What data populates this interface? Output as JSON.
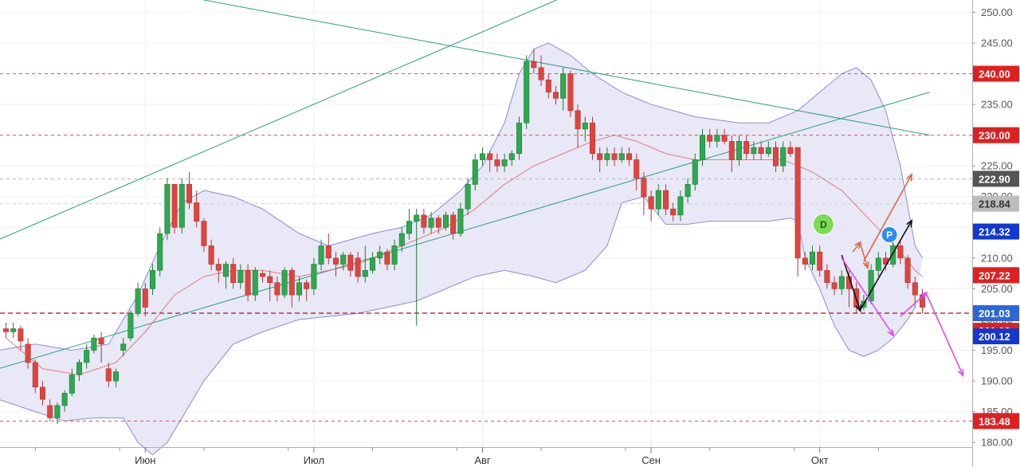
{
  "chart_data": {
    "type": "candlestick",
    "title": "",
    "xlabel": "",
    "ylabel": "",
    "ylim": [
      176,
      252
    ],
    "y_ticks": [
      "180.00",
      "185.00",
      "190.00",
      "195.00",
      "200.00",
      "205.00",
      "210.00",
      "215.00",
      "220.00",
      "225.00",
      "230.00",
      "235.00",
      "240.00",
      "245.00",
      "250.00"
    ],
    "x_ticks": [
      {
        "label": "Июн",
        "index": 19
      },
      {
        "label": "Июл",
        "index": 42
      },
      {
        "label": "Авг",
        "index": 65
      },
      {
        "label": "Сен",
        "index": 88
      },
      {
        "label": "Окт",
        "index": 111
      }
    ],
    "colors": {
      "up": "#2fa84f",
      "down": "#e0443e",
      "band_fill": "#e4e4f4",
      "band_line": "#8b8bd6",
      "sma": "#e06060",
      "trend": "#2a9d7f",
      "level": "#d02020"
    },
    "candles": [
      [
        198.5,
        198.0,
        199.5,
        197.0
      ],
      [
        198.0,
        198.5,
        199.5,
        197.0
      ],
      [
        198.5,
        196.5,
        199.0,
        195.0
      ],
      [
        196.0,
        193.0,
        197.0,
        192.0
      ],
      [
        193.0,
        189.0,
        193.5,
        188.0
      ],
      [
        189.0,
        187.0,
        190.0,
        186.0
      ],
      [
        186.0,
        184.0,
        187.0,
        183.5
      ],
      [
        184.0,
        186.0,
        186.5,
        183.0
      ],
      [
        186.0,
        188.0,
        188.5,
        185.0
      ],
      [
        188.0,
        191.0,
        192.0,
        187.5
      ],
      [
        191.0,
        193.0,
        193.5,
        190.0
      ],
      [
        193.0,
        195.0,
        196.0,
        192.0
      ],
      [
        195.0,
        197.0,
        197.5,
        194.5
      ],
      [
        197.0,
        196.0,
        198.0,
        193.0
      ],
      [
        192.0,
        190.0,
        193.0,
        189.0
      ],
      [
        190.0,
        191.5,
        192.0,
        189.0
      ],
      [
        195.0,
        196.0,
        197.0,
        194.0
      ],
      [
        197.0,
        201.0,
        201.5,
        196.5
      ],
      [
        201.0,
        205.0,
        206.0,
        200.5
      ],
      [
        205.0,
        202.0,
        206.0,
        200.5
      ],
      [
        205.0,
        208.0,
        209.0,
        204.0
      ],
      [
        208.0,
        214.0,
        215.0,
        207.0
      ],
      [
        214.0,
        222.0,
        223.0,
        213.0
      ],
      [
        222.0,
        215.0,
        222.0,
        214.0
      ],
      [
        215.0,
        222.0,
        223.0,
        214.0
      ],
      [
        222.0,
        219.0,
        224.0,
        218.0
      ],
      [
        219.0,
        216.0,
        221.0,
        215.0
      ],
      [
        216.0,
        212.0,
        216.5,
        211.0
      ],
      [
        212.0,
        209.0,
        213.0,
        208.0
      ],
      [
        209.0,
        208.0,
        210.0,
        206.0
      ],
      [
        207.0,
        209.0,
        209.5,
        205.0
      ],
      [
        209.0,
        206.0,
        210.0,
        205.0
      ],
      [
        206.0,
        208.0,
        209.0,
        205.0
      ],
      [
        208.0,
        204.0,
        209.0,
        203.0
      ],
      [
        204.0,
        208.0,
        208.5,
        203.0
      ],
      [
        207.5,
        207.0,
        208.0,
        206.0
      ],
      [
        207.0,
        206.0,
        208.0,
        203.0
      ],
      [
        206.0,
        204.0,
        207.0,
        203.0
      ],
      [
        204.0,
        208.0,
        208.5,
        203.5
      ],
      [
        208.0,
        204.0,
        208.5,
        202.0
      ],
      [
        204.0,
        206.0,
        207.0,
        203.0
      ],
      [
        206.0,
        205.0,
        206.5,
        203.0
      ],
      [
        205.0,
        209.0,
        210.0,
        204.0
      ],
      [
        209.0,
        212.0,
        213.0,
        208.0
      ],
      [
        212.0,
        210.0,
        214.0,
        209.0
      ],
      [
        210.0,
        209.0,
        211.0,
        207.0
      ],
      [
        209.0,
        210.5,
        211.0,
        208.0
      ],
      [
        210.5,
        208.0,
        211.0,
        207.0
      ],
      [
        210.0,
        207.0,
        211.0,
        206.0
      ],
      [
        207.0,
        208.0,
        212.0,
        206.0
      ],
      [
        208.0,
        210.0,
        211.0,
        207.5
      ],
      [
        210.0,
        211.0,
        212.0,
        209.0
      ],
      [
        211.0,
        209.0,
        211.5,
        208.0
      ],
      [
        209.0,
        212.0,
        213.0,
        208.0
      ],
      [
        212.0,
        214.0,
        215.0,
        211.0
      ],
      [
        214.0,
        216.0,
        218.0,
        213.0
      ],
      [
        216.0,
        217.0,
        218.0,
        199.0
      ],
      [
        217.0,
        215.0,
        218.0,
        214.0
      ],
      [
        215.0,
        216.5,
        217.5,
        214.0
      ],
      [
        216.5,
        215.0,
        217.0,
        214.0
      ],
      [
        215.0,
        217.0,
        217.5,
        214.5
      ],
      [
        217.0,
        214.0,
        217.5,
        213.0
      ],
      [
        214.0,
        218.0,
        219.0,
        213.5
      ],
      [
        218.0,
        222.0,
        223.0,
        217.0
      ],
      [
        222.0,
        226.0,
        227.0,
        221.0
      ],
      [
        226.0,
        227.0,
        228.0,
        225.0
      ],
      [
        227.0,
        226.0,
        227.5,
        224.0
      ],
      [
        226.0,
        225.0,
        227.0,
        224.0
      ],
      [
        225.0,
        226.0,
        227.0,
        224.0
      ],
      [
        226.0,
        227.0,
        227.5,
        225.0
      ],
      [
        227.0,
        232.0,
        233.0,
        226.0
      ],
      [
        232.0,
        242.0,
        243.0,
        231.0
      ],
      [
        242.0,
        241.0,
        244.0,
        240.0
      ],
      [
        241.0,
        239.0,
        243.0,
        238.0
      ],
      [
        239.0,
        237.0,
        240.0,
        236.0
      ],
      [
        237.0,
        236.0,
        238.0,
        235.0
      ],
      [
        236.0,
        240.0,
        241.0,
        234.0
      ],
      [
        240.0,
        234.0,
        240.5,
        233.0
      ],
      [
        234.0,
        231.0,
        235.0,
        228.0
      ],
      [
        231.0,
        232.0,
        233.0,
        229.0
      ],
      [
        232.0,
        227.0,
        233.0,
        226.0
      ],
      [
        227.0,
        226.0,
        228.0,
        224.0
      ],
      [
        226.0,
        227.0,
        228.0,
        225.0
      ],
      [
        227.0,
        226.0,
        228.0,
        225.0
      ],
      [
        226.0,
        227.0,
        228.0,
        225.5
      ],
      [
        227.0,
        226.0,
        228.0,
        225.0
      ],
      [
        226.0,
        223.0,
        227.0,
        221.0
      ],
      [
        223.0,
        220.0,
        224.0,
        217.0
      ],
      [
        220.0,
        218.0,
        221.0,
        216.0
      ],
      [
        218.0,
        221.0,
        222.0,
        217.0
      ],
      [
        221.0,
        218.0,
        222.0,
        217.0
      ],
      [
        218.0,
        217.0,
        219.0,
        216.0
      ],
      [
        217.0,
        220.0,
        221.0,
        216.0
      ],
      [
        220.0,
        222.0,
        223.0,
        219.0
      ],
      [
        222.0,
        226.0,
        227.0,
        221.0
      ],
      [
        226.0,
        230.0,
        231.0,
        225.0
      ],
      [
        230.0,
        229.0,
        231.0,
        228.0
      ],
      [
        229.0,
        230.0,
        231.0,
        228.0
      ],
      [
        230.0,
        229.0,
        231.0,
        228.5
      ],
      [
        229.0,
        226.0,
        230.0,
        224.0
      ],
      [
        226.0,
        229.0,
        230.0,
        225.0
      ],
      [
        229.0,
        227.0,
        230.0,
        226.0
      ],
      [
        227.0,
        228.0,
        229.0,
        226.0
      ],
      [
        228.0,
        227.0,
        229.0,
        226.0
      ],
      [
        227.0,
        228.0,
        229.0,
        226.5
      ],
      [
        228.0,
        225.0,
        229.0,
        224.0
      ],
      [
        225.0,
        228.0,
        229.0,
        224.0
      ],
      [
        228.0,
        227.0,
        229.0,
        226.5
      ],
      [
        228.0,
        210.0,
        211.0,
        207.0
      ],
      [
        210.0,
        209.0,
        211.0,
        208.0
      ],
      [
        209.0,
        211.0,
        212.0,
        208.0
      ],
      [
        211.0,
        208.0,
        212.0,
        207.0
      ],
      [
        208.0,
        206.0,
        209.0,
        205.0
      ],
      [
        206.0,
        205.0,
        207.0,
        204.0
      ],
      [
        205.0,
        207.0,
        208.0,
        204.0
      ],
      [
        207.0,
        205.0,
        208.0,
        202.0
      ],
      [
        205.0,
        202.0,
        206.0,
        201.0
      ],
      [
        202.0,
        203.0,
        204.0,
        201.5
      ],
      [
        203.0,
        208.0,
        209.0,
        202.5
      ],
      [
        208.0,
        210.0,
        211.0,
        207.0
      ],
      [
        210.0,
        209.0,
        211.0,
        208.0
      ],
      [
        209.0,
        212.0,
        213.0,
        208.5
      ],
      [
        212.0,
        210.0,
        213.0,
        209.0
      ],
      [
        210.0,
        206.0,
        210.5,
        205.0
      ],
      [
        206.0,
        204.0,
        207.0,
        202.0
      ],
      [
        204.0,
        202.0,
        205.0,
        201.0
      ]
    ],
    "upper_band": [
      [
        -1,
        195
      ],
      [
        4,
        196
      ],
      [
        9,
        195
      ],
      [
        14,
        196
      ],
      [
        18,
        204
      ],
      [
        21,
        212
      ],
      [
        24,
        219
      ],
      [
        27,
        221
      ],
      [
        31,
        220
      ],
      [
        35,
        218
      ],
      [
        40,
        214
      ],
      [
        44,
        212
      ],
      [
        47,
        213
      ],
      [
        50,
        214
      ],
      [
        54,
        215
      ],
      [
        58,
        217
      ],
      [
        62,
        221
      ],
      [
        65,
        225
      ],
      [
        68,
        232
      ],
      [
        70,
        240
      ],
      [
        72,
        244
      ],
      [
        74,
        245
      ],
      [
        77,
        243
      ],
      [
        80,
        240
      ],
      [
        84,
        237
      ],
      [
        88,
        235
      ],
      [
        91,
        234
      ],
      [
        94,
        233
      ],
      [
        97,
        232.5
      ],
      [
        100,
        232
      ],
      [
        104,
        232
      ],
      [
        108,
        234
      ],
      [
        111,
        237
      ],
      [
        114,
        240
      ],
      [
        116,
        241
      ],
      [
        118,
        239
      ],
      [
        120,
        234
      ],
      [
        122,
        225
      ],
      [
        124,
        212
      ],
      [
        125,
        210
      ]
    ],
    "lower_band": [
      [
        -1,
        187
      ],
      [
        4,
        185
      ],
      [
        8,
        183.5
      ],
      [
        12,
        184
      ],
      [
        16,
        184
      ],
      [
        18,
        180
      ],
      [
        20,
        178
      ],
      [
        22,
        180
      ],
      [
        24,
        184
      ],
      [
        27,
        190
      ],
      [
        31,
        196
      ],
      [
        35,
        198
      ],
      [
        40,
        200
      ],
      [
        44,
        200.5
      ],
      [
        48,
        201
      ],
      [
        52,
        202
      ],
      [
        56,
        203
      ],
      [
        60,
        205
      ],
      [
        64,
        207
      ],
      [
        68,
        208
      ],
      [
        72,
        207
      ],
      [
        75,
        206
      ],
      [
        79,
        208
      ],
      [
        82,
        212
      ],
      [
        84,
        219
      ],
      [
        87,
        220
      ],
      [
        90,
        215.5
      ],
      [
        93,
        215.5
      ],
      [
        96,
        216
      ],
      [
        100,
        216
      ],
      [
        104,
        216
      ],
      [
        107,
        216.5
      ],
      [
        108,
        216
      ],
      [
        109,
        210
      ],
      [
        111,
        205
      ],
      [
        113,
        199
      ],
      [
        115,
        195
      ],
      [
        117,
        194
      ],
      [
        119,
        195
      ],
      [
        121,
        197
      ],
      [
        123,
        200
      ],
      [
        124,
        202
      ]
    ],
    "sma": [
      [
        0,
        197
      ],
      [
        5,
        192
      ],
      [
        10,
        191
      ],
      [
        15,
        193
      ],
      [
        19,
        198
      ],
      [
        23,
        204
      ],
      [
        27,
        207
      ],
      [
        31,
        208
      ],
      [
        35,
        208
      ],
      [
        40,
        207
      ],
      [
        44,
        208
      ],
      [
        48,
        209
      ],
      [
        52,
        211
      ],
      [
        56,
        213
      ],
      [
        60,
        215
      ],
      [
        64,
        218
      ],
      [
        68,
        222
      ],
      [
        72,
        225
      ],
      [
        76,
        227
      ],
      [
        80,
        229
      ],
      [
        83,
        230
      ],
      [
        86,
        229
      ],
      [
        90,
        227
      ],
      [
        94,
        226
      ],
      [
        98,
        226
      ],
      [
        102,
        226
      ],
      [
        106,
        226
      ],
      [
        110,
        224
      ],
      [
        114,
        221
      ],
      [
        118,
        216
      ],
      [
        122,
        211
      ],
      [
        124,
        208
      ],
      [
        125,
        207
      ]
    ],
    "trend_lines": [
      {
        "name": "channel-upper",
        "from": [
          -1,
          213
        ],
        "to": [
          79,
          254
        ]
      },
      {
        "name": "channel-lower",
        "from": [
          -1,
          192
        ],
        "to": [
          126,
          237
        ]
      },
      {
        "name": "descending",
        "from": [
          9,
          256
        ],
        "to": [
          126,
          230
        ]
      }
    ],
    "levels": [
      {
        "value": 240.0,
        "label": "240.00",
        "style": "red-dashed",
        "badge": "#e02020"
      },
      {
        "value": 230.0,
        "label": "230.00",
        "style": "red-dashed",
        "badge": "#e02020"
      },
      {
        "value": 222.9,
        "label": "222.90",
        "style": "gray-dashed",
        "badge": "#555555"
      },
      {
        "value": 218.84,
        "label": "218.84",
        "style": "light-gray-dashed",
        "badge": "#bdbdbd"
      },
      {
        "value": 214.32,
        "label": "214.32",
        "style": "none",
        "badge": "#1238d0"
      },
      {
        "value": 207.22,
        "label": "207.22",
        "style": "none",
        "badge": "#e02020"
      },
      {
        "value": 201.03,
        "label": "201.03",
        "style": "darkred-dashed",
        "badge": "#2c67d8"
      },
      {
        "value": 201.02,
        "label": "201.02",
        "style": "none",
        "badge": "#e02020",
        "badge_offset": 22
      },
      {
        "value": 200.12,
        "label": "200.12",
        "style": "none",
        "badge": "#1238d0",
        "badge_offset": 22
      },
      {
        "value": 183.48,
        "label": "183.48",
        "style": "red-dashed",
        "badge": "#e02020"
      }
    ],
    "markers": [
      {
        "label": "D",
        "index": 111.5,
        "value": 215.5,
        "color": "#7ed957",
        "text_color": "#1a5a10"
      },
      {
        "label": "P",
        "index": 120.5,
        "value": 213.8,
        "color": "#2c8ef0",
        "text_color": "#ffffff"
      }
    ],
    "arrows": [
      {
        "color": "#111111",
        "from": [
          114,
          210.5
        ],
        "to": [
          116.5,
          201.5
        ]
      },
      {
        "color": "#111111",
        "from": [
          116.5,
          201.5
        ],
        "to": [
          123.5,
          216
        ]
      },
      {
        "color": "#e04af0",
        "from": [
          114,
          210
        ],
        "to": [
          121,
          197.5
        ]
      },
      {
        "color": "#e04af0",
        "from": [
          122,
          200.5
        ],
        "to": [
          125.5,
          204.3
        ]
      },
      {
        "color": "#e04af0",
        "from": [
          125.5,
          204.3
        ],
        "to": [
          130.5,
          191
        ]
      },
      {
        "color": "#d96a48",
        "from": [
          117,
          209.5
        ],
        "to": [
          123.5,
          223.5
        ]
      },
      {
        "color": "#d96a48",
        "from": [
          115.5,
          211
        ],
        "to": [
          116.5,
          212.5
        ]
      },
      {
        "color": "#d96a48",
        "from": [
          116.5,
          212.5
        ],
        "to": [
          117.5,
          208.5
        ]
      }
    ]
  }
}
